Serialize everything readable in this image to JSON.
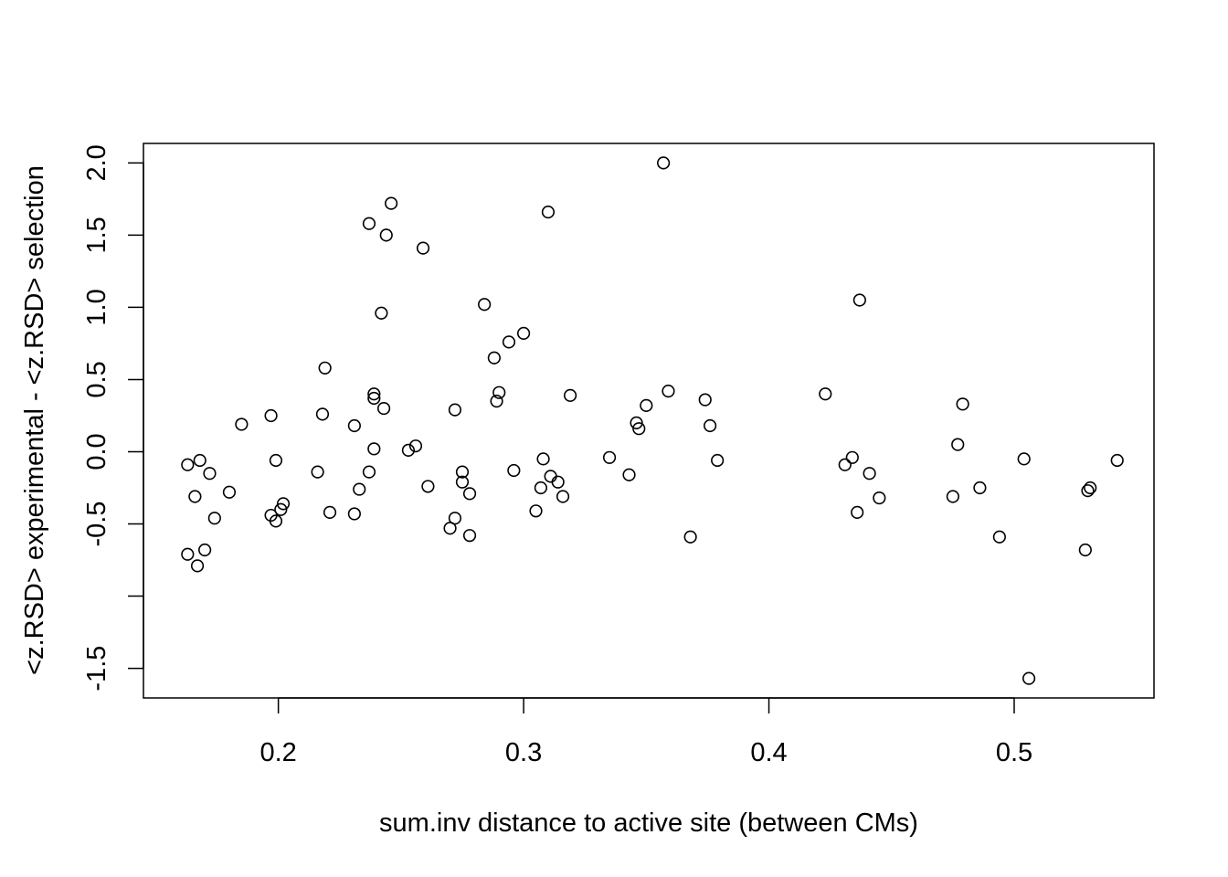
{
  "chart_data": {
    "type": "scatter",
    "title": "",
    "xlabel": "sum.inv distance to active site (between CMs)",
    "ylabel": "<z.RSD> experimental - <z.RSD> selection",
    "xlim": [
      0.145,
      0.557
    ],
    "ylim": [
      -1.705,
      2.135
    ],
    "x_ticks": [
      {
        "value": 0.2,
        "label": "0.2"
      },
      {
        "value": 0.3,
        "label": "0.3"
      },
      {
        "value": 0.4,
        "label": "0.4"
      },
      {
        "value": 0.5,
        "label": "0.5"
      }
    ],
    "y_ticks": [
      {
        "value": 2.0,
        "label": "2.0"
      },
      {
        "value": 1.5,
        "label": "1.5"
      },
      {
        "value": 1.0,
        "label": "1.0"
      },
      {
        "value": 0.5,
        "label": "0.5"
      },
      {
        "value": 0.0,
        "label": "0.0"
      },
      {
        "value": -0.5,
        "label": "-0.5"
      },
      {
        "value": -1.0,
        "label": ""
      },
      {
        "value": -1.5,
        "label": "-1.5"
      }
    ],
    "grid": false,
    "legend": "none",
    "marker": "open-circle",
    "color": "#000000",
    "points": [
      {
        "x": 0.163,
        "y": -0.09
      },
      {
        "x": 0.163,
        "y": -0.71
      },
      {
        "x": 0.166,
        "y": -0.31
      },
      {
        "x": 0.167,
        "y": -0.79
      },
      {
        "x": 0.168,
        "y": -0.06
      },
      {
        "x": 0.17,
        "y": -0.68
      },
      {
        "x": 0.172,
        "y": -0.15
      },
      {
        "x": 0.174,
        "y": -0.46
      },
      {
        "x": 0.18,
        "y": -0.28
      },
      {
        "x": 0.185,
        "y": 0.19
      },
      {
        "x": 0.197,
        "y": 0.25
      },
      {
        "x": 0.197,
        "y": -0.44
      },
      {
        "x": 0.199,
        "y": -0.48
      },
      {
        "x": 0.199,
        "y": -0.06
      },
      {
        "x": 0.201,
        "y": -0.4
      },
      {
        "x": 0.202,
        "y": -0.36
      },
      {
        "x": 0.216,
        "y": -0.14
      },
      {
        "x": 0.218,
        "y": 0.26
      },
      {
        "x": 0.219,
        "y": 0.58
      },
      {
        "x": 0.221,
        "y": -0.42
      },
      {
        "x": 0.231,
        "y": 0.18
      },
      {
        "x": 0.231,
        "y": -0.43
      },
      {
        "x": 0.233,
        "y": -0.26
      },
      {
        "x": 0.237,
        "y": 1.58
      },
      {
        "x": 0.237,
        "y": -0.14
      },
      {
        "x": 0.239,
        "y": 0.02
      },
      {
        "x": 0.239,
        "y": 0.4
      },
      {
        "x": 0.239,
        "y": 0.37
      },
      {
        "x": 0.242,
        "y": 0.96
      },
      {
        "x": 0.243,
        "y": 0.3
      },
      {
        "x": 0.244,
        "y": 1.5
      },
      {
        "x": 0.246,
        "y": 1.72
      },
      {
        "x": 0.253,
        "y": 0.01
      },
      {
        "x": 0.256,
        "y": 0.04
      },
      {
        "x": 0.259,
        "y": 1.41
      },
      {
        "x": 0.261,
        "y": -0.24
      },
      {
        "x": 0.27,
        "y": -0.53
      },
      {
        "x": 0.272,
        "y": -0.46
      },
      {
        "x": 0.272,
        "y": 0.29
      },
      {
        "x": 0.275,
        "y": -0.21
      },
      {
        "x": 0.275,
        "y": -0.14
      },
      {
        "x": 0.278,
        "y": -0.58
      },
      {
        "x": 0.278,
        "y": -0.29
      },
      {
        "x": 0.284,
        "y": 1.02
      },
      {
        "x": 0.288,
        "y": 0.65
      },
      {
        "x": 0.289,
        "y": 0.35
      },
      {
        "x": 0.29,
        "y": 0.41
      },
      {
        "x": 0.294,
        "y": 0.76
      },
      {
        "x": 0.296,
        "y": -0.13
      },
      {
        "x": 0.3,
        "y": 0.82
      },
      {
        "x": 0.305,
        "y": -0.41
      },
      {
        "x": 0.307,
        "y": -0.25
      },
      {
        "x": 0.308,
        "y": -0.05
      },
      {
        "x": 0.31,
        "y": 1.66
      },
      {
        "x": 0.311,
        "y": -0.17
      },
      {
        "x": 0.314,
        "y": -0.21
      },
      {
        "x": 0.316,
        "y": -0.31
      },
      {
        "x": 0.319,
        "y": 0.39
      },
      {
        "x": 0.335,
        "y": -0.04
      },
      {
        "x": 0.343,
        "y": -0.16
      },
      {
        "x": 0.346,
        "y": 0.2
      },
      {
        "x": 0.347,
        "y": 0.16
      },
      {
        "x": 0.35,
        "y": 0.32
      },
      {
        "x": 0.357,
        "y": 2.0
      },
      {
        "x": 0.359,
        "y": 0.42
      },
      {
        "x": 0.368,
        "y": -0.59
      },
      {
        "x": 0.374,
        "y": 0.36
      },
      {
        "x": 0.376,
        "y": 0.18
      },
      {
        "x": 0.379,
        "y": -0.06
      },
      {
        "x": 0.423,
        "y": 0.4
      },
      {
        "x": 0.431,
        "y": -0.09
      },
      {
        "x": 0.434,
        "y": -0.04
      },
      {
        "x": 0.436,
        "y": -0.42
      },
      {
        "x": 0.437,
        "y": 1.05
      },
      {
        "x": 0.441,
        "y": -0.15
      },
      {
        "x": 0.445,
        "y": -0.32
      },
      {
        "x": 0.475,
        "y": -0.31
      },
      {
        "x": 0.477,
        "y": 0.05
      },
      {
        "x": 0.479,
        "y": 0.33
      },
      {
        "x": 0.486,
        "y": -0.25
      },
      {
        "x": 0.494,
        "y": -0.59
      },
      {
        "x": 0.504,
        "y": -0.05
      },
      {
        "x": 0.506,
        "y": -1.57
      },
      {
        "x": 0.529,
        "y": -0.68
      },
      {
        "x": 0.53,
        "y": -0.27
      },
      {
        "x": 0.531,
        "y": -0.25
      },
      {
        "x": 0.542,
        "y": -0.06
      }
    ]
  }
}
